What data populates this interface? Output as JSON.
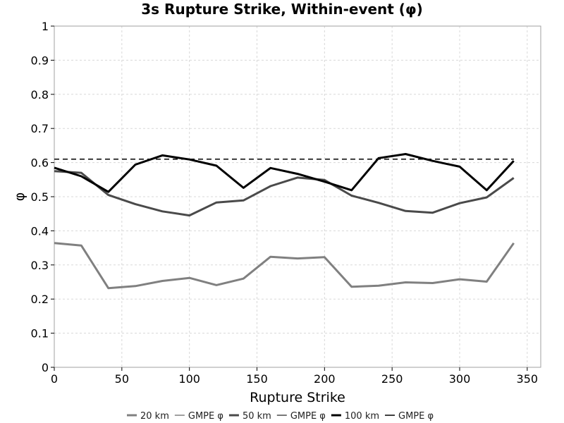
{
  "chart_data": {
    "type": "line",
    "title": "3s Rupture Strike, Within-event (φ)",
    "xlabel": "Rupture Strike",
    "ylabel": "φ",
    "xlim": [
      0,
      360
    ],
    "ylim": [
      0,
      1
    ],
    "xticks": [
      "0",
      "50",
      "100",
      "150",
      "200",
      "250",
      "300",
      "350"
    ],
    "yticks": [
      "0",
      "0.1",
      "0.2",
      "0.3",
      "0.4",
      "0.5",
      "0.6",
      "0.7",
      "0.8",
      "0.9",
      "1"
    ],
    "grid": true,
    "legend_position": "bottom",
    "x": [
      0,
      20,
      40,
      60,
      80,
      100,
      120,
      140,
      160,
      180,
      200,
      220,
      240,
      260,
      280,
      300,
      320,
      340
    ],
    "series": [
      {
        "name": "20 km",
        "color": "#808080",
        "style": "solid",
        "values": [
          0.364,
          0.357,
          0.232,
          0.238,
          0.253,
          0.262,
          0.241,
          0.26,
          0.324,
          0.319,
          0.323,
          0.236,
          0.239,
          0.249,
          0.247,
          0.258,
          0.251,
          0.364
        ]
      },
      {
        "name": "GMPE φ",
        "color": "#808080",
        "style": "dashed",
        "values": [
          0.61,
          0.61,
          0.61,
          0.61,
          0.61,
          0.61,
          0.61,
          0.61,
          0.61,
          0.61,
          0.61,
          0.61,
          0.61,
          0.61,
          0.61,
          0.61,
          0.61,
          0.61
        ]
      },
      {
        "name": "50 km",
        "color": "#4a4a4a",
        "style": "solid",
        "values": [
          0.575,
          0.57,
          0.505,
          0.478,
          0.457,
          0.445,
          0.483,
          0.489,
          0.531,
          0.556,
          0.549,
          0.503,
          0.482,
          0.458,
          0.453,
          0.481,
          0.498,
          0.555
        ]
      },
      {
        "name": "GMPE φ",
        "color": "#4a4a4a",
        "style": "dashed",
        "values": [
          0.61,
          0.61,
          0.61,
          0.61,
          0.61,
          0.61,
          0.61,
          0.61,
          0.61,
          0.61,
          0.61,
          0.61,
          0.61,
          0.61,
          0.61,
          0.61,
          0.61,
          0.61
        ]
      },
      {
        "name": "100 km",
        "color": "#000000",
        "style": "solid",
        "values": [
          0.585,
          0.56,
          0.514,
          0.594,
          0.621,
          0.609,
          0.591,
          0.526,
          0.584,
          0.567,
          0.544,
          0.519,
          0.613,
          0.625,
          0.605,
          0.588,
          0.519,
          0.605
        ]
      },
      {
        "name": "GMPE φ",
        "color": "#000000",
        "style": "dashed",
        "values": [
          0.61,
          0.61,
          0.61,
          0.61,
          0.61,
          0.61,
          0.61,
          0.61,
          0.61,
          0.61,
          0.61,
          0.61,
          0.61,
          0.61,
          0.61,
          0.61,
          0.61,
          0.61
        ]
      }
    ]
  }
}
